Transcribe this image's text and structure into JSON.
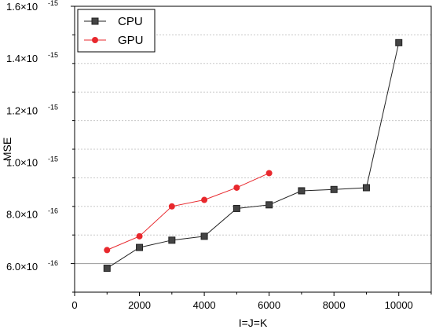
{
  "chart_data": {
    "type": "line",
    "xlabel": "I=J=K",
    "ylabel": "MSE",
    "xlim": [
      0,
      11000
    ],
    "ylim": [
      5e-16,
      1.6e-15
    ],
    "x_ticks": [
      0,
      2000,
      4000,
      6000,
      8000,
      10000
    ],
    "x_tick_labels": [
      "0",
      "2000",
      "4000",
      "6000",
      "8000",
      "10000"
    ],
    "y_ticks": [
      {
        "value": 6e-16,
        "mant": "6.0",
        "exp": "-16"
      },
      {
        "value": 8e-16,
        "mant": "8.0",
        "exp": "-16"
      },
      {
        "value": 1e-15,
        "mant": "1.0",
        "exp": "-15"
      },
      {
        "value": 1.2e-15,
        "mant": "1.2",
        "exp": "-15"
      },
      {
        "value": 1.4e-15,
        "mant": "1.4",
        "exp": "-15"
      },
      {
        "value": 1.6e-15,
        "mant": "1.6",
        "exp": "-15"
      }
    ],
    "y_tick_multiplier": "×10",
    "grid": "horizontal dashed",
    "legend_position": "top-left",
    "series": [
      {
        "name": "CPU",
        "color": "#222222",
        "marker": "square",
        "x": [
          1000,
          2000,
          3000,
          4000,
          5000,
          6000,
          7000,
          8000,
          9000,
          10000
        ],
        "y": [
          5.92e-16,
          6.72e-16,
          7e-16,
          7.15e-16,
          8.22e-16,
          8.36e-16,
          8.9e-16,
          8.95e-16,
          9.02e-16,
          1.46e-15
        ]
      },
      {
        "name": "GPU",
        "color": "#e8282d",
        "marker": "circle",
        "x": [
          1000,
          2000,
          3000,
          4000,
          5000,
          6000
        ],
        "y": [
          6.62e-16,
          7.15e-16,
          8.3e-16,
          8.55e-16,
          9.02e-16,
          9.58e-16
        ]
      }
    ]
  }
}
